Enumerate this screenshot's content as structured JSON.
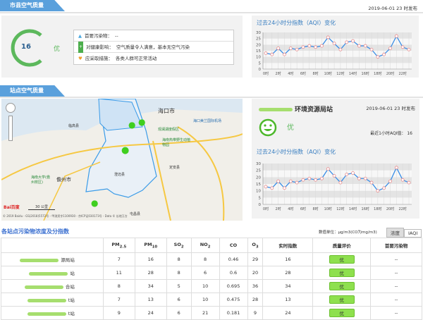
{
  "city_section": {
    "tab": "市县空气质量",
    "aqi": "16",
    "level": "优",
    "level_color": "#5cb85c",
    "rows": [
      {
        "label": "首要污染物：",
        "value": "--",
        "icon": "triangle-icon"
      },
      {
        "label": "对健康影响：",
        "value": "空气质量令人满意，基本无空气污染",
        "icon": "plus-icon"
      },
      {
        "label": "应采取措施：",
        "value": "各类人群可正常活动",
        "icon": "heart-icon"
      }
    ],
    "publish_time": "2019-06-01 23 时发布"
  },
  "station_section": {
    "tab": "站点空气质量",
    "station_name": "环境资源局站",
    "publish_time": "2019-06-01 23 时发布",
    "level": "优",
    "recent_label": "最近1小时AQI值：",
    "recent_value": "16",
    "map": {
      "labels": [
        "海口市",
        "海口美兰国际机场",
        "观澜湖度假区",
        "海南热带野生动植物园",
        "儋州市",
        "海南大学(儋州校区)",
        "临高县",
        "定安县",
        "屯昌县",
        "澄迈县"
      ],
      "scale": "30 公里",
      "copyright": "© 2019 Baidu - GS(2018)5572号 - 甲测资字1100930 - 京ICP证030173号 - Data © 长地万方",
      "logo": "Bai百度"
    }
  },
  "chart_data": {
    "type": "line",
    "title": "过去24小时分指数（AQI）变化",
    "x": [
      "0时",
      "1时",
      "2时",
      "3时",
      "4时",
      "5时",
      "6时",
      "7时",
      "8时",
      "9时",
      "10时",
      "11时",
      "12时",
      "13时",
      "14时",
      "15时",
      "16时",
      "17时",
      "18时",
      "19时",
      "20时",
      "21时",
      "22时",
      "23时"
    ],
    "tick_labels": [
      "0时",
      "2时",
      "4时",
      "6时",
      "8时",
      "10时",
      "12时",
      "14时",
      "16时",
      "18时",
      "20时",
      "22时"
    ],
    "values": [
      13,
      12,
      17,
      12,
      17,
      16,
      18,
      19,
      18,
      19,
      26,
      21,
      16,
      22,
      23,
      19,
      19,
      16,
      10,
      12,
      17,
      27,
      18,
      16
    ],
    "ylim": [
      0,
      30
    ],
    "yticks": [
      0,
      5,
      10,
      15,
      20,
      25,
      30
    ],
    "grid": true,
    "line_color": "#3a8ee6"
  },
  "table": {
    "title": "各站点污染物浓度及分指数",
    "unit": "数值单位：μg/m3(CO为mg/m3)",
    "toggle": [
      "浓度",
      "IAQI"
    ],
    "headers": [
      "",
      "PM2.5",
      "PM10",
      "SO2",
      "NO2",
      "CO",
      "O3",
      "实时指数",
      "质量评价",
      "首要污染物"
    ],
    "rows": [
      [
        "源局站",
        "7",
        "16",
        "8",
        "8",
        "0.46",
        "29",
        "16",
        "优",
        "--"
      ],
      [
        "站",
        "11",
        "28",
        "8",
        "6",
        "0.6",
        "20",
        "28",
        "优",
        "--"
      ],
      [
        "合站",
        "8",
        "34",
        "5",
        "10",
        "0.695",
        "36",
        "34",
        "优",
        "--"
      ],
      [
        "t站",
        "7",
        "13",
        "6",
        "10",
        "0.475",
        "28",
        "13",
        "优",
        "--"
      ],
      [
        "t站",
        "9",
        "24",
        "6",
        "21",
        "0.181",
        "9",
        "24",
        "优",
        "--"
      ]
    ]
  }
}
